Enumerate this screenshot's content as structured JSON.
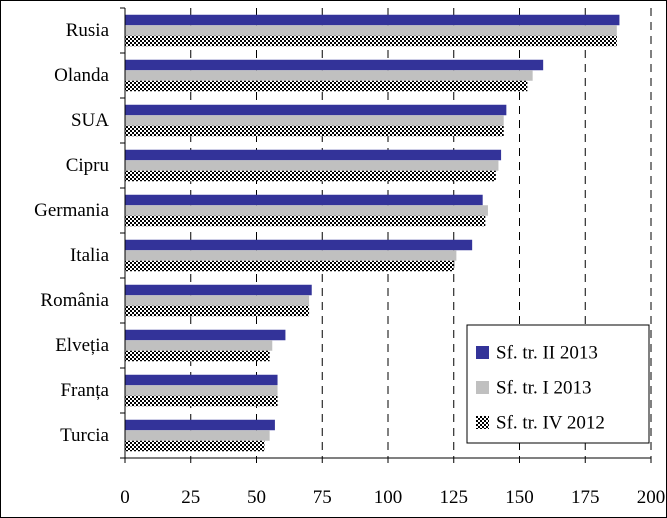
{
  "chart_data": {
    "type": "bar",
    "orientation": "horizontal",
    "categories": [
      "Rusia",
      "Olanda",
      "SUA",
      "Cipru",
      "Germania",
      "Italia",
      "România",
      "Elveția",
      "Franța",
      "Turcia"
    ],
    "series": [
      {
        "name": "Sf. tr. II 2013",
        "color": "#333399",
        "pattern": "solid",
        "values": [
          188,
          159,
          145,
          143,
          136,
          132,
          71,
          61,
          58,
          57
        ]
      },
      {
        "name": "Sf. tr. I 2013",
        "color": "#c0c0c0",
        "pattern": "solid",
        "values": [
          187,
          155,
          144,
          142,
          138,
          126,
          70,
          56,
          58,
          55
        ]
      },
      {
        "name": "Sf. tr. IV 2012",
        "color": "#000000",
        "pattern": "checker",
        "values": [
          187,
          153,
          144,
          141,
          137,
          125,
          70,
          55,
          58,
          53
        ]
      }
    ],
    "xlim": [
      0,
      200
    ],
    "xticks": [
      0,
      25,
      50,
      75,
      100,
      125,
      150,
      175,
      200
    ],
    "xtick_labels": [
      "0",
      "25",
      "50",
      "75",
      "100",
      "125",
      "150",
      "175",
      "200"
    ],
    "grid": "vertical dashed",
    "legend_position": "bottom-right",
    "title": "",
    "xlabel": "",
    "ylabel": ""
  }
}
